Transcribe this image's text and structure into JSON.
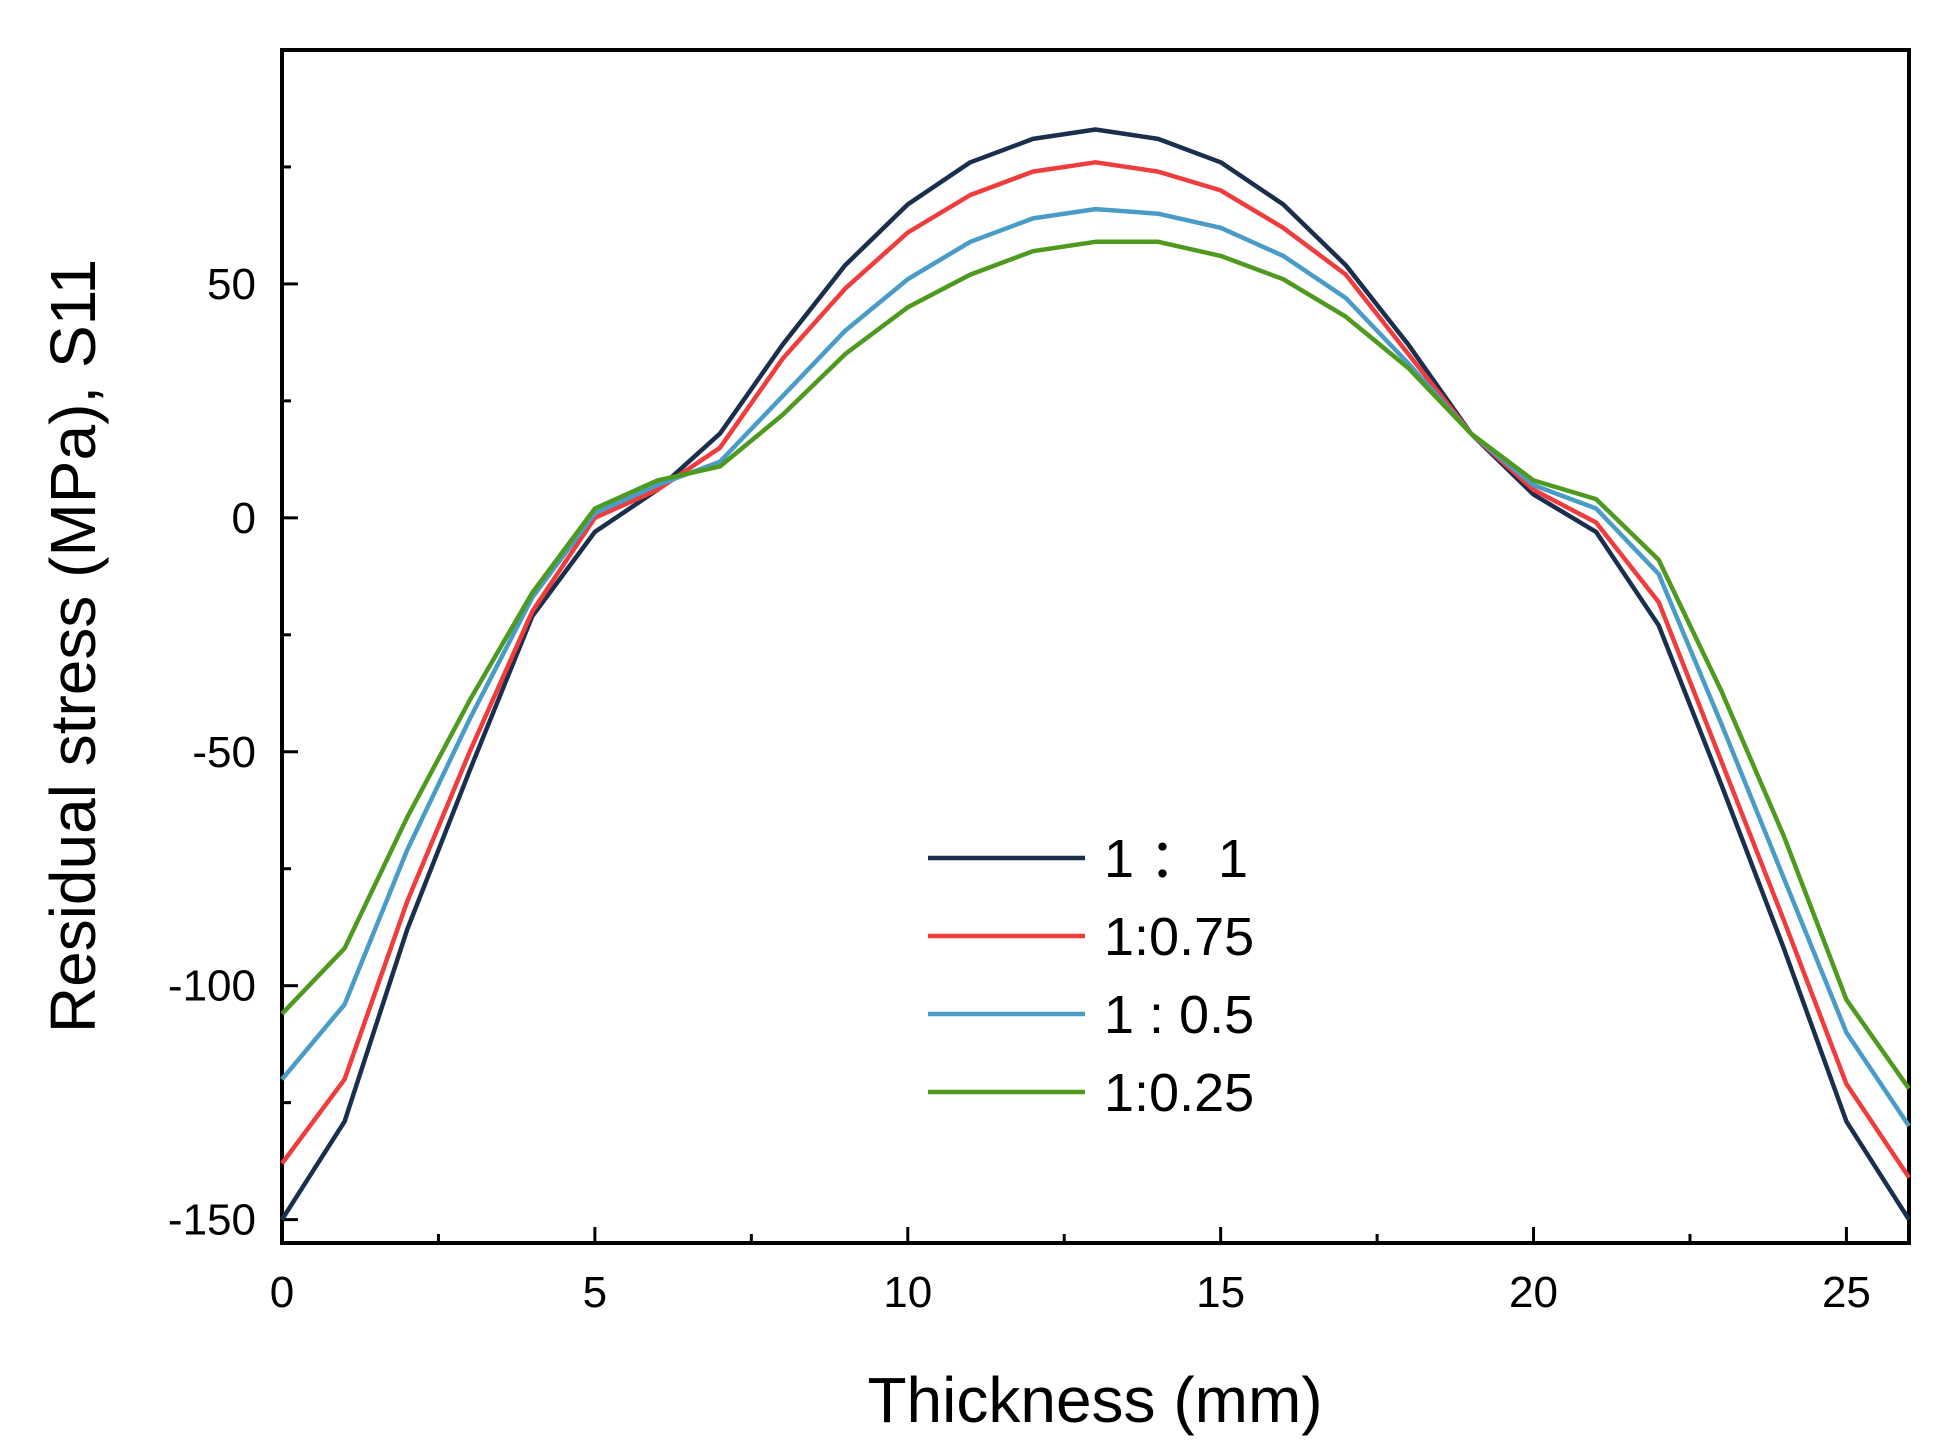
{
  "chart_data": {
    "type": "line",
    "title": "",
    "xlabel": "Thickness (mm)",
    "ylabel": "Residual stress (MPa), S11",
    "xlim": [
      0,
      26
    ],
    "ylim": [
      -155,
      100
    ],
    "x_ticks": [
      0,
      5,
      10,
      15,
      20,
      25
    ],
    "x_tick_labels": [
      "0",
      "5",
      "10",
      "15",
      "20",
      "25"
    ],
    "y_ticks": [
      -150,
      -100,
      -50,
      0,
      50
    ],
    "y_tick_labels": [
      "-150",
      "-100",
      "-50",
      "0",
      "50"
    ],
    "grid": false,
    "legend_position": "center-bottom",
    "x": [
      0,
      1,
      2,
      3,
      4,
      5,
      6,
      7,
      8,
      9,
      10,
      11,
      12,
      13,
      14,
      15,
      16,
      17,
      18,
      19,
      20,
      21,
      22,
      23,
      24,
      25,
      26
    ],
    "series": [
      {
        "name": "1 ： 1",
        "color": "#1a2f4d",
        "values": [
          -150,
          -129,
          -88,
          -54,
          -21,
          -3,
          6,
          18,
          37,
          54,
          67,
          76,
          81,
          83,
          81,
          76,
          67,
          54,
          37,
          18,
          5,
          -3,
          -23,
          -57,
          -92,
          -129,
          -150
        ]
      },
      {
        "name": "1:0.75",
        "color": "#f03c3c",
        "values": [
          -138,
          -120,
          -82,
          -50,
          -20,
          0,
          6,
          15,
          34,
          49,
          61,
          69,
          74,
          76,
          74,
          70,
          62,
          52,
          35,
          18,
          6,
          -1,
          -18,
          -52,
          -86,
          -121,
          -141
        ]
      },
      {
        "name": "1 : 0.5",
        "color": "#4a9cc8",
        "values": [
          -120,
          -104,
          -71,
          -43,
          -17,
          1,
          7,
          12,
          26,
          40,
          51,
          59,
          64,
          66,
          65,
          62,
          56,
          47,
          33,
          18,
          7,
          2,
          -12,
          -44,
          -77,
          -110,
          -130
        ]
      },
      {
        "name": "1:0.25",
        "color": "#4d9a1e",
        "values": [
          -106,
          -92,
          -64,
          -39,
          -16,
          2,
          8,
          11,
          22,
          35,
          45,
          52,
          57,
          59,
          59,
          56,
          51,
          43,
          32,
          18,
          8,
          4,
          -9,
          -37,
          -68,
          -103,
          -122
        ]
      }
    ]
  }
}
